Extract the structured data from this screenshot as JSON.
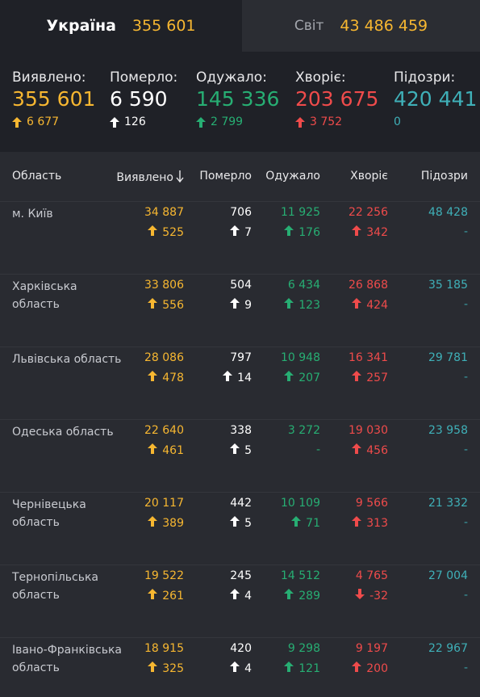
{
  "tabs": [
    {
      "name": "Україна",
      "value": "355 601"
    },
    {
      "name": "Світ",
      "value": "43 486 459"
    }
  ],
  "colors": {
    "yellow": "#f7b731",
    "white": "#ffffff",
    "green": "#27ae73",
    "red": "#ef4b4b",
    "cyan": "#3fb0b8"
  },
  "summary": [
    {
      "label": "Виявлено:",
      "value": "355 601",
      "delta": "6 677",
      "arrow": "up",
      "color": "yellow"
    },
    {
      "label": "Померло:",
      "value": "6 590",
      "delta": "126",
      "arrow": "up",
      "color": "white"
    },
    {
      "label": "Одужало:",
      "value": "145 336",
      "delta": "2 799",
      "arrow": "up",
      "color": "green"
    },
    {
      "label": "Хворіє:",
      "value": "203 675",
      "delta": "3 752",
      "arrow": "up",
      "color": "red"
    },
    {
      "label": "Підозри:",
      "value": "420 441",
      "delta": "0",
      "arrow": "none",
      "color": "cyan"
    }
  ],
  "table": {
    "headers": {
      "region": "Область",
      "detected": "Виявлено",
      "sort_icon": "arrow-down-icon",
      "died": "Померло",
      "recovered": "Одужало",
      "sick": "Хворіє",
      "suspected": "Підозри"
    },
    "rows": [
      {
        "name": "м. Київ",
        "detected": "34 887",
        "detected_delta": "525",
        "died": "706",
        "died_delta": "7",
        "recovered": "11 925",
        "recovered_delta": "176",
        "sick": "22 256",
        "sick_delta": "342",
        "sick_arrow": "up",
        "suspected": "48 428",
        "suspected_delta": "-"
      },
      {
        "name": "Харківська область",
        "detected": "33 806",
        "detected_delta": "556",
        "died": "504",
        "died_delta": "9",
        "recovered": "6 434",
        "recovered_delta": "123",
        "sick": "26 868",
        "sick_delta": "424",
        "sick_arrow": "up",
        "suspected": "35 185",
        "suspected_delta": "-"
      },
      {
        "name": "Львівська область",
        "detected": "28 086",
        "detected_delta": "478",
        "died": "797",
        "died_delta": "14",
        "recovered": "10 948",
        "recovered_delta": "207",
        "sick": "16 341",
        "sick_delta": "257",
        "sick_arrow": "up",
        "suspected": "29 781",
        "suspected_delta": "-"
      },
      {
        "name": "Одеська область",
        "detected": "22 640",
        "detected_delta": "461",
        "died": "338",
        "died_delta": "5",
        "recovered": "3 272",
        "recovered_delta": "-",
        "sick": "19 030",
        "sick_delta": "456",
        "sick_arrow": "up",
        "suspected": "23 958",
        "suspected_delta": "-"
      },
      {
        "name": "Чернівецька область",
        "detected": "20 117",
        "detected_delta": "389",
        "died": "442",
        "died_delta": "5",
        "recovered": "10 109",
        "recovered_delta": "71",
        "sick": "9 566",
        "sick_delta": "313",
        "sick_arrow": "up",
        "suspected": "21 332",
        "suspected_delta": "-"
      },
      {
        "name": "Тернопільська область",
        "detected": "19 522",
        "detected_delta": "261",
        "died": "245",
        "died_delta": "4",
        "recovered": "14 512",
        "recovered_delta": "289",
        "sick": "4 765",
        "sick_delta": "-32",
        "sick_arrow": "down",
        "suspected": "27 004",
        "suspected_delta": "-"
      },
      {
        "name": "Івано-Франківська область",
        "detected": "18 915",
        "detected_delta": "325",
        "died": "420",
        "died_delta": "4",
        "recovered": "9 298",
        "recovered_delta": "121",
        "sick": "9 197",
        "sick_delta": "200",
        "sick_arrow": "up",
        "suspected": "22 967",
        "suspected_delta": "-"
      }
    ]
  }
}
